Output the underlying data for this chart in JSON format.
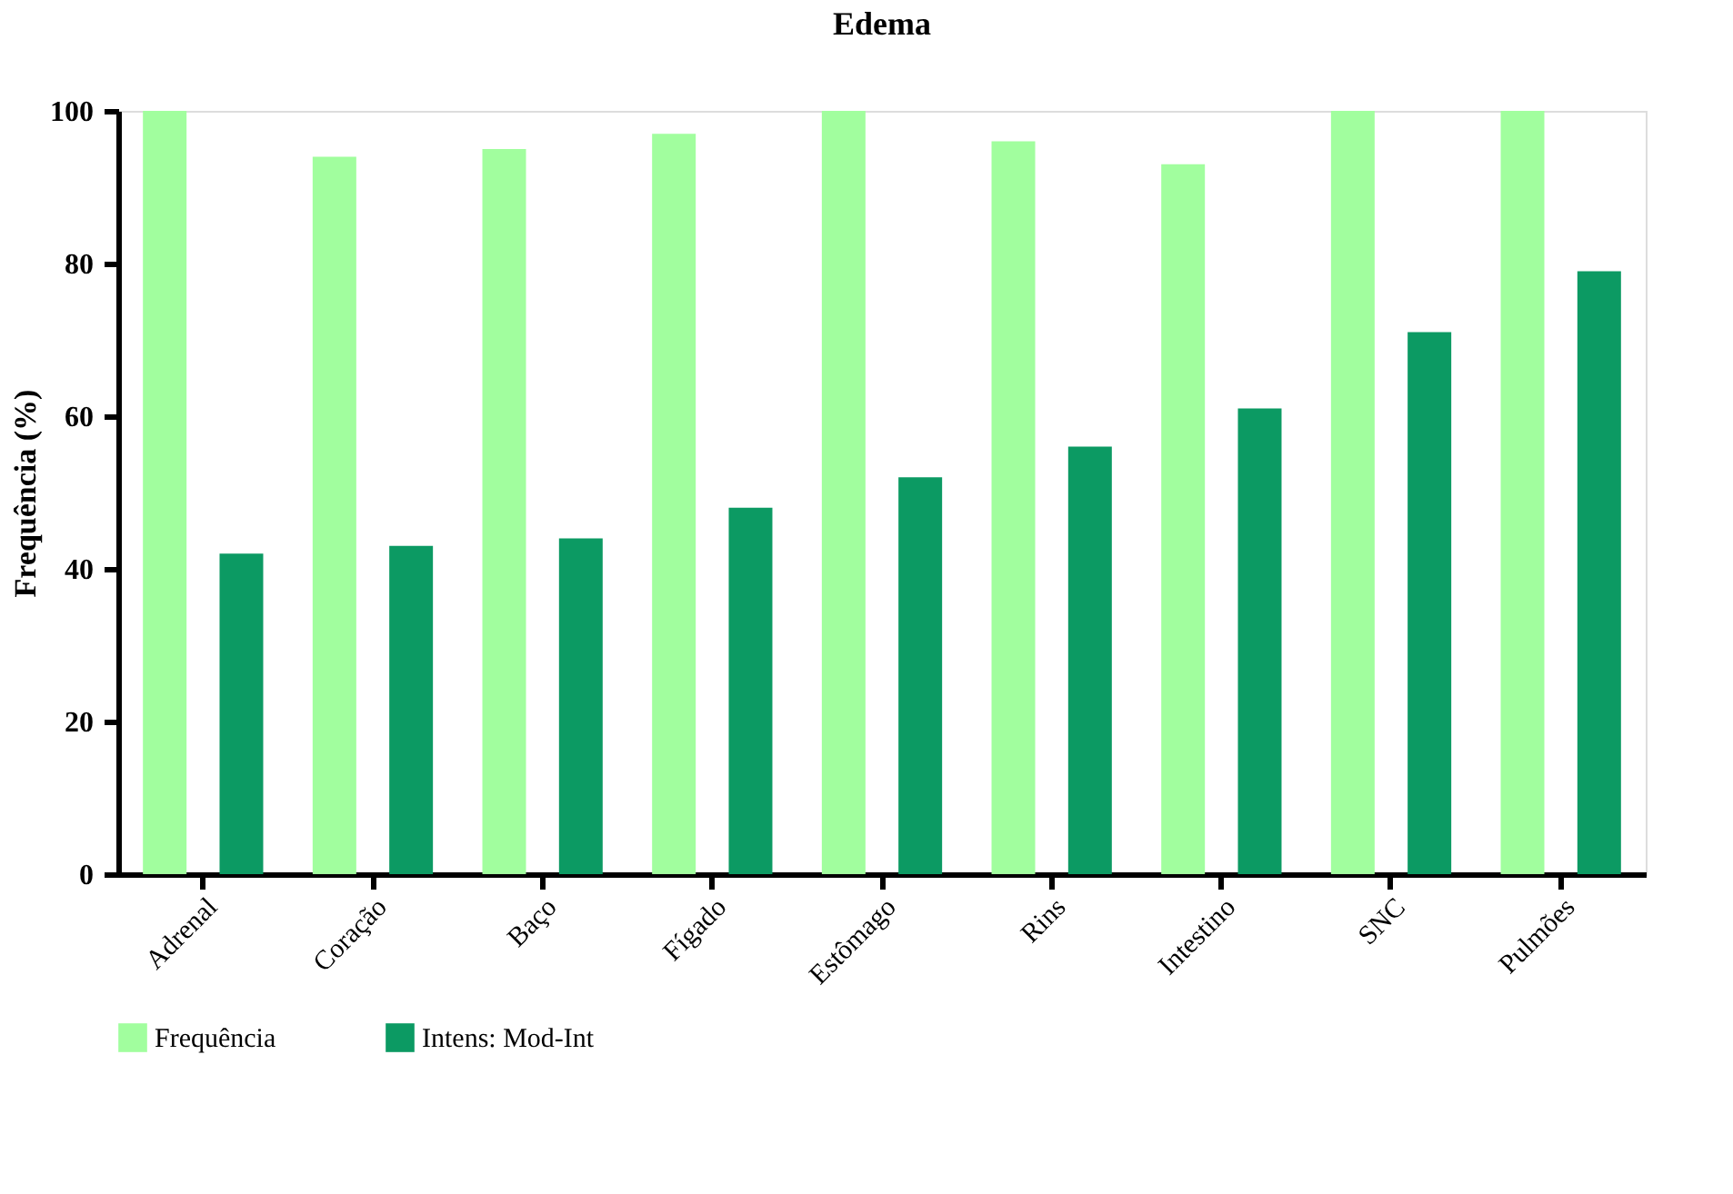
{
  "chart_data": {
    "type": "bar",
    "title": "Edema",
    "ylabel": "Frequência (%)",
    "categories": [
      "Adrenal",
      "Coração",
      "Baço",
      "Fígado",
      "Estômago",
      "Rins",
      "Intestino",
      "SNC",
      "Pulmões"
    ],
    "series": [
      {
        "name": "Frequência",
        "color": "#a1fe9e",
        "values": [
          100,
          94,
          95,
          97,
          100,
          96,
          93,
          100,
          100
        ]
      },
      {
        "name": "Intens: Mod-Int",
        "color": "#0c9a63",
        "values": [
          42,
          43,
          44,
          48,
          52,
          56,
          61,
          71,
          79
        ]
      }
    ],
    "ylim": [
      0,
      100
    ],
    "yticks": [
      0,
      20,
      40,
      60,
      80,
      100
    ],
    "grid": false,
    "legend": "bottom"
  }
}
